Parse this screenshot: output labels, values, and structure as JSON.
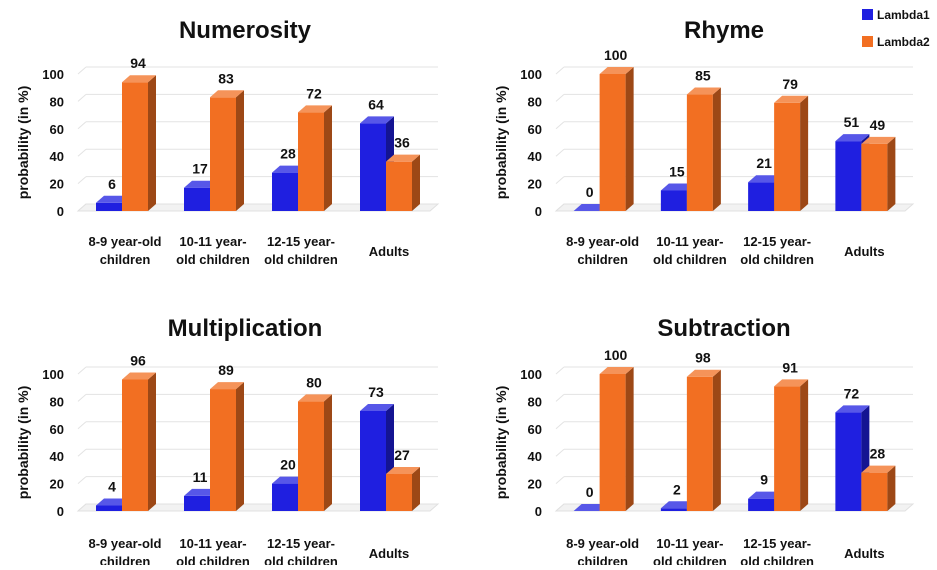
{
  "legend": [
    {
      "name": "Lambda1",
      "color": "#1f1fe0"
    },
    {
      "name": "Lambda2",
      "color": "#f26f22"
    }
  ],
  "chart_data": [
    {
      "type": "bar",
      "title": "Numerosity",
      "ylabel": "probability (in %)",
      "ylim": [
        0,
        100
      ],
      "yticks": [
        0,
        20,
        40,
        60,
        80,
        100
      ],
      "categories": [
        [
          "8-9 year-old",
          "children"
        ],
        [
          "10-11 year-",
          "old children"
        ],
        [
          "12-15 year-",
          "old children"
        ],
        [
          "Adults"
        ]
      ],
      "series": [
        {
          "name": "Lambda1",
          "values": [
            6,
            17,
            28,
            64
          ]
        },
        {
          "name": "Lambda2",
          "values": [
            94,
            83,
            72,
            36
          ]
        }
      ],
      "grid": true,
      "legend_position": "top-right"
    },
    {
      "type": "bar",
      "title": "Rhyme",
      "ylabel": "probability (in %)",
      "ylim": [
        0,
        100
      ],
      "yticks": [
        0,
        20,
        40,
        60,
        80,
        100
      ],
      "categories": [
        [
          "8-9 year-old",
          "children"
        ],
        [
          "10-11 year-",
          "old children"
        ],
        [
          "12-15 year-",
          "old children"
        ],
        [
          "Adults"
        ]
      ],
      "series": [
        {
          "name": "Lambda1",
          "values": [
            0,
            15,
            21,
            51
          ]
        },
        {
          "name": "Lambda2",
          "values": [
            100,
            85,
            79,
            49
          ]
        }
      ],
      "grid": true
    },
    {
      "type": "bar",
      "title": "Multiplication",
      "ylabel": "probability (in %)",
      "ylim": [
        0,
        100
      ],
      "yticks": [
        0,
        20,
        40,
        60,
        80,
        100
      ],
      "categories": [
        [
          "8-9 year-old",
          "children"
        ],
        [
          "10-11 year-",
          "old children"
        ],
        [
          "12-15 year-",
          "old children"
        ],
        [
          "Adults"
        ]
      ],
      "series": [
        {
          "name": "Lambda1",
          "values": [
            4,
            11,
            20,
            73
          ]
        },
        {
          "name": "Lambda2",
          "values": [
            96,
            89,
            80,
            27
          ]
        }
      ],
      "grid": true
    },
    {
      "type": "bar",
      "title": "Subtraction",
      "ylabel": "probability (in %)",
      "ylim": [
        0,
        100
      ],
      "yticks": [
        0,
        20,
        40,
        60,
        80,
        100
      ],
      "categories": [
        [
          "8-9 year-old",
          "children"
        ],
        [
          "10-11 year-",
          "old children"
        ],
        [
          "12-15 year-",
          "old children"
        ],
        [
          "Adults"
        ]
      ],
      "series": [
        {
          "name": "Lambda1",
          "values": [
            0,
            2,
            9,
            72
          ]
        },
        {
          "name": "Lambda2",
          "values": [
            100,
            98,
            91,
            28
          ]
        }
      ],
      "grid": true
    }
  ]
}
